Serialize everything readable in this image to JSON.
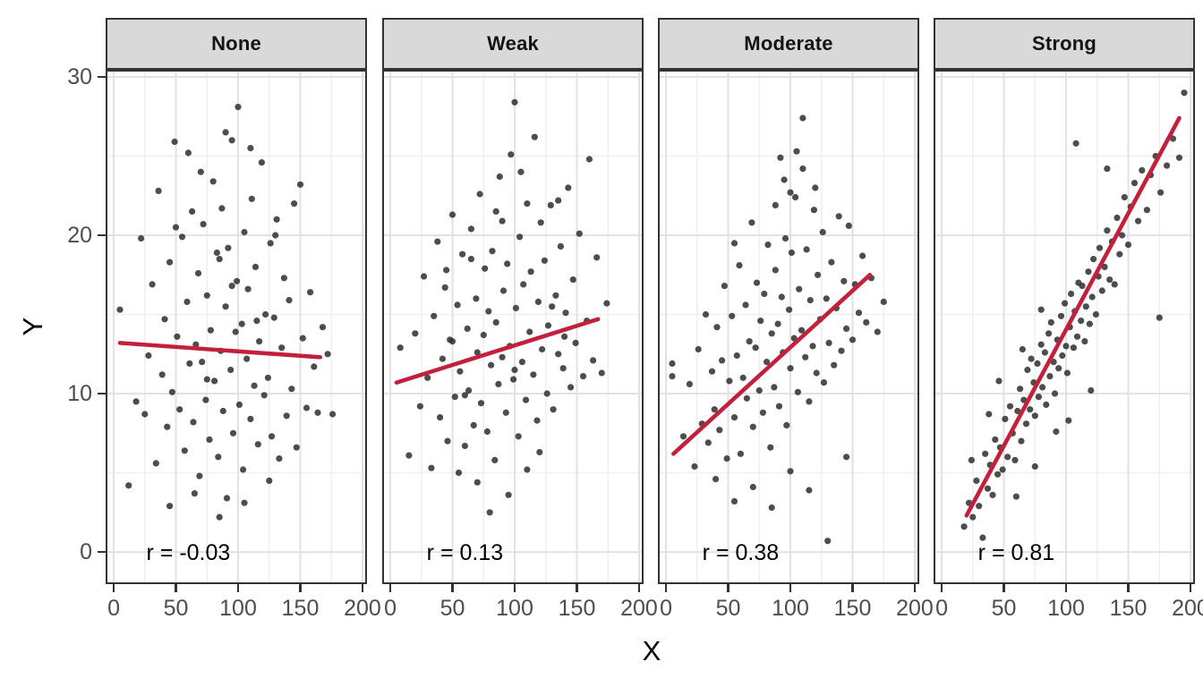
{
  "chart_data": {
    "type": "scatter",
    "title": "",
    "xlabel": "X",
    "ylabel": "Y",
    "x_ticks": [
      0,
      50,
      100,
      150,
      200
    ],
    "y_ticks": [
      0,
      10,
      20,
      30
    ],
    "x_minor": [
      25,
      75,
      125,
      175
    ],
    "y_minor": [
      5,
      15,
      25
    ],
    "xlim": [
      -6.5,
      203.6
    ],
    "ylim": [
      -2.03,
      30.45
    ],
    "legend": "none",
    "grid": "major+minor",
    "colors": {
      "point": "#2e2e2e",
      "trend": "#c2203c",
      "strip_bg": "#d9d9d9",
      "panel_border": "#333333",
      "grid_major": "#e2e2e2",
      "grid_minor": "#f0f0f0",
      "axis_text": "#4d4d4d",
      "title_text": "#000000"
    },
    "annotation_pos": {
      "x": 60,
      "y": 0
    },
    "facets": [
      {
        "label": "None",
        "r": -0.03,
        "r_label": "r = -0.03",
        "trend": [
          5,
          13.2,
          166,
          12.3
        ],
        "points": [
          5,
          15.3,
          12,
          4.2,
          18,
          9.5,
          22,
          19.8,
          25,
          8.7,
          28,
          12.4,
          31,
          16.9,
          34,
          5.6,
          36,
          22.8,
          39,
          11.2,
          41,
          14.7,
          43,
          7.9,
          45,
          18.3,
          47,
          10.1,
          49,
          25.9,
          51,
          13.6,
          53,
          9.0,
          55,
          19.9,
          57,
          6.4,
          59,
          15.8,
          61,
          11.9,
          63,
          21.5,
          64,
          8.2,
          66,
          13.1,
          68,
          17.6,
          69,
          4.8,
          71,
          12.0,
          72,
          20.7,
          74,
          9.6,
          75,
          16.2,
          77,
          7.1,
          78,
          14.0,
          80,
          23.4,
          81,
          10.8,
          83,
          18.9,
          84,
          6.0,
          86,
          12.7,
          87,
          21.7,
          88,
          8.9,
          90,
          15.5,
          91,
          3.4,
          92,
          19.2,
          94,
          11.5,
          95,
          26.0,
          96,
          7.5,
          98,
          13.9,
          99,
          17.1,
          100,
          28.1,
          101,
          9.3,
          103,
          14.4,
          104,
          5.2,
          105,
          20.2,
          107,
          12.2,
          108,
          16.6,
          110,
          8.4,
          111,
          22.3,
          113,
          10.5,
          114,
          18.0,
          116,
          6.8,
          117,
          13.3,
          119,
          24.6,
          121,
          9.9,
          122,
          15.0,
          124,
          11.0,
          126,
          19.5,
          127,
          7.3,
          129,
          14.8,
          131,
          21.0,
          133,
          5.9,
          135,
          12.9,
          137,
          17.3,
          139,
          8.6,
          141,
          15.9,
          143,
          10.3,
          145,
          22.0,
          147,
          6.6,
          150,
          23.2,
          152,
          13.5,
          155,
          9.1,
          158,
          16.4,
          161,
          11.7,
          164,
          8.8,
          168,
          14.2,
          172,
          12.5,
          176,
          8.7,
          45,
          2.9,
          65,
          3.7,
          85,
          2.2,
          105,
          3.1,
          125,
          4.5,
          60,
          25.2,
          70,
          24.0,
          90,
          26.5,
          110,
          25.5,
          50,
          20.5,
          130,
          20.0,
          95,
          16.8,
          75,
          10.9,
          115,
          14.6,
          85,
          18.5
        ]
      },
      {
        "label": "Weak",
        "r": 0.13,
        "r_label": "r = 0.13",
        "trend": [
          5,
          10.7,
          167,
          14.7
        ],
        "points": [
          8,
          12.9,
          15,
          6.1,
          20,
          13.8,
          24,
          9.2,
          27,
          17.4,
          30,
          11.0,
          33,
          5.3,
          35,
          14.9,
          38,
          19.6,
          40,
          8.5,
          42,
          12.2,
          44,
          16.7,
          46,
          7.0,
          48,
          13.4,
          50,
          21.3,
          52,
          9.8,
          54,
          15.6,
          56,
          11.4,
          58,
          18.8,
          60,
          6.7,
          62,
          14.1,
          63,
          10.2,
          65,
          20.4,
          67,
          8.0,
          69,
          16.0,
          70,
          12.6,
          72,
          22.6,
          73,
          9.4,
          75,
          13.7,
          76,
          17.9,
          78,
          7.6,
          79,
          15.2,
          81,
          11.8,
          82,
          19.0,
          84,
          5.8,
          85,
          14.5,
          87,
          10.6,
          88,
          23.7,
          90,
          12.3,
          91,
          16.5,
          93,
          8.8,
          94,
          18.2,
          96,
          13.0,
          97,
          25.1,
          99,
          10.9,
          100,
          28.4,
          101,
          15.4,
          103,
          7.3,
          104,
          19.9,
          106,
          12.0,
          107,
          16.9,
          109,
          9.6,
          110,
          22.0,
          112,
          13.9,
          113,
          17.7,
          115,
          11.2,
          116,
          26.2,
          118,
          8.3,
          119,
          15.8,
          121,
          20.8,
          122,
          12.8,
          124,
          18.4,
          126,
          10.0,
          127,
          14.3,
          129,
          21.9,
          131,
          9.0,
          133,
          16.2,
          135,
          12.5,
          137,
          19.3,
          139,
          11.6,
          141,
          15.1,
          143,
          23.0,
          145,
          10.4,
          147,
          17.2,
          149,
          13.2,
          152,
          20.1,
          155,
          11.1,
          158,
          14.6,
          160,
          24.8,
          163,
          12.1,
          166,
          18.6,
          170,
          11.3,
          174,
          15.7,
          80,
          2.5,
          95,
          3.6,
          110,
          5.2,
          70,
          4.4,
          120,
          6.3,
          55,
          5.0,
          85,
          21.5,
          105,
          24.0,
          65,
          18.5,
          45,
          17.8,
          135,
          22.2,
          90,
          20.9,
          50,
          13.3,
          100,
          11.5,
          140,
          13.6,
          60,
          9.9,
          130,
          15.5
        ]
      },
      {
        "label": "Moderate",
        "r": 0.38,
        "r_label": "r = 0.38",
        "trend": [
          6,
          6.2,
          164,
          17.5
        ],
        "points": [
          5,
          11.9,
          5,
          11.1,
          14,
          7.3,
          19,
          10.6,
          23,
          5.4,
          26,
          12.8,
          29,
          8.1,
          32,
          15.0,
          34,
          6.9,
          37,
          11.4,
          39,
          9.0,
          41,
          14.2,
          43,
          7.7,
          45,
          12.1,
          47,
          16.8,
          49,
          5.9,
          51,
          10.8,
          53,
          14.9,
          55,
          8.5,
          57,
          12.4,
          59,
          18.1,
          60,
          6.2,
          62,
          11.0,
          64,
          15.6,
          65,
          9.7,
          67,
          13.3,
          69,
          20.8,
          70,
          7.9,
          72,
          12.9,
          73,
          17.0,
          75,
          10.2,
          76,
          14.6,
          78,
          8.8,
          79,
          16.3,
          81,
          12.0,
          82,
          19.4,
          84,
          6.6,
          85,
          13.8,
          87,
          10.4,
          88,
          17.8,
          90,
          14.4,
          91,
          9.2,
          93,
          16.1,
          94,
          12.6,
          96,
          19.8,
          97,
          8.0,
          99,
          15.3,
          100,
          11.6,
          101,
          18.9,
          103,
          13.5,
          104,
          22.4,
          106,
          10.1,
          107,
          16.6,
          109,
          14.0,
          110,
          27.4,
          112,
          12.3,
          113,
          19.1,
          115,
          9.5,
          116,
          15.9,
          118,
          13.0,
          119,
          21.6,
          121,
          11.3,
          122,
          17.5,
          124,
          14.7,
          126,
          20.2,
          127,
          10.7,
          129,
          16.0,
          131,
          13.2,
          133,
          18.3,
          135,
          11.8,
          137,
          15.4,
          139,
          21.2,
          141,
          12.7,
          143,
          17.1,
          145,
          14.1,
          147,
          20.6,
          150,
          13.4,
          152,
          16.9,
          155,
          15.1,
          158,
          18.7,
          161,
          14.5,
          165,
          17.3,
          170,
          13.9,
          175,
          15.8,
          55,
          3.2,
          70,
          4.1,
          85,
          2.8,
          100,
          5.1,
          115,
          3.9,
          130,
          0.7,
          145,
          6.0,
          40,
          4.6,
          95,
          23.5,
          105,
          25.3,
          110,
          24.2,
          120,
          23.0,
          92,
          24.9,
          100,
          22.7,
          88,
          21.9,
          55,
          19.5
        ]
      },
      {
        "label": "Strong",
        "r": 0.81,
        "r_label": "r = 0.81",
        "trend": [
          20,
          2.3,
          191,
          27.4
        ],
        "points": [
          18,
          1.6,
          22,
          3.1,
          25,
          2.2,
          28,
          4.5,
          30,
          2.9,
          33,
          0.9,
          35,
          6.2,
          37,
          4.0,
          39,
          5.5,
          41,
          3.6,
          43,
          7.1,
          45,
          4.9,
          47,
          6.6,
          49,
          5.2,
          51,
          8.4,
          53,
          6.0,
          55,
          9.2,
          57,
          7.5,
          59,
          5.8,
          61,
          8.9,
          63,
          10.3,
          64,
          7.0,
          66,
          9.6,
          68,
          8.1,
          69,
          11.5,
          71,
          9.0,
          72,
          12.2,
          74,
          10.7,
          75,
          8.6,
          77,
          11.9,
          78,
          9.8,
          80,
          13.1,
          81,
          10.4,
          83,
          12.6,
          84,
          9.3,
          86,
          13.8,
          87,
          11.1,
          88,
          14.5,
          90,
          12.0,
          91,
          10.0,
          93,
          13.4,
          94,
          11.6,
          96,
          14.9,
          97,
          12.4,
          99,
          15.7,
          100,
          13.0,
          101,
          11.3,
          103,
          14.2,
          104,
          16.3,
          106,
          12.9,
          107,
          15.2,
          109,
          13.6,
          110,
          17.0,
          112,
          14.6,
          113,
          16.8,
          115,
          13.3,
          116,
          15.5,
          118,
          17.7,
          119,
          14.4,
          121,
          16.1,
          122,
          18.5,
          124,
          15.0,
          126,
          17.4,
          127,
          19.2,
          129,
          16.5,
          131,
          18.0,
          133,
          20.3,
          135,
          17.2,
          137,
          19.6,
          139,
          16.9,
          141,
          21.1,
          143,
          18.8,
          145,
          20.0,
          147,
          22.4,
          150,
          19.4,
          152,
          21.8,
          155,
          23.3,
          158,
          20.9,
          161,
          24.1,
          165,
          21.6,
          168,
          23.8,
          172,
          25.0,
          176,
          22.7,
          181,
          24.4,
          186,
          26.1,
          191,
          24.9,
          195,
          29.0,
          108,
          25.8,
          133,
          24.2,
          46,
          10.8,
          102,
          8.3,
          175,
          14.8,
          24,
          5.8,
          60,
          3.5,
          38,
          8.7,
          75,
          5.4,
          92,
          7.6,
          120,
          10.2,
          65,
          12.8,
          80,
          15.3
        ]
      }
    ]
  }
}
